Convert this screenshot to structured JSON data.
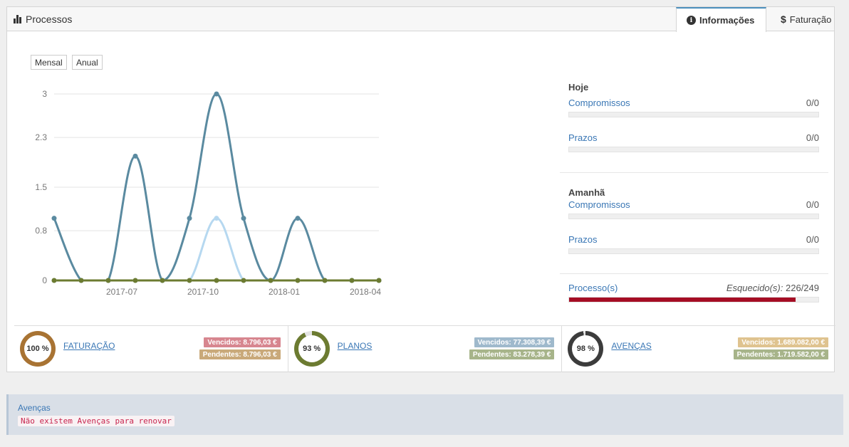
{
  "header": {
    "title": "Processos",
    "tabs": [
      {
        "label": "Informações",
        "icon": "info-circle-icon",
        "active": true
      },
      {
        "label": "Faturação",
        "icon": "dollar-icon",
        "active": false
      }
    ]
  },
  "chart_controls": {
    "monthly": "Mensal",
    "yearly": "Anual"
  },
  "chart_data": {
    "type": "line",
    "y_ticks": [
      "3",
      "2.3",
      "1.5",
      "0.8",
      "0"
    ],
    "x_ticks": [
      "2017-07",
      "2017-10",
      "2018-01",
      "2018-04"
    ],
    "ylim": [
      0,
      3
    ],
    "grid": true,
    "series": [
      {
        "color": "#5a8aa0",
        "values": [
          1,
          0,
          0,
          2,
          0,
          1,
          3,
          1,
          0,
          1,
          0,
          0,
          0
        ]
      },
      {
        "color": "#b6d8f0",
        "values": [
          0,
          0,
          0,
          0,
          0,
          0,
          1,
          0,
          0,
          0,
          0,
          0,
          0
        ]
      },
      {
        "color": "#6c7b31",
        "values": [
          0,
          0,
          0,
          0,
          0,
          0,
          0,
          0,
          0,
          0,
          0,
          0,
          0
        ]
      }
    ]
  },
  "side": {
    "today": {
      "heading": "Hoje",
      "items": [
        {
          "label": "Compromissos",
          "value": "0/0",
          "fraction": 0
        },
        {
          "label": "Prazos",
          "value": "0/0",
          "fraction": 0
        }
      ]
    },
    "tomorrow": {
      "heading": "Amanhã",
      "items": [
        {
          "label": "Compromissos",
          "value": "0/0",
          "fraction": 0
        },
        {
          "label": "Prazos",
          "value": "0/0",
          "fraction": 0
        }
      ]
    },
    "processes": {
      "label": "Processo(s)",
      "forgotten_label": "Esquecido(s):",
      "forgotten_value": "226/249",
      "fraction": 0.9076
    }
  },
  "stats": [
    {
      "pct": "100 %",
      "fraction": 1.0,
      "color": "#a87333",
      "label": "FATURAÇÃO",
      "due": "Vencidos: 8.796,03 €",
      "due_color": "#d7868f",
      "pending": "Pendentes: 8.796,03 €",
      "pending_color": "#c9a97a"
    },
    {
      "pct": "93 %",
      "fraction": 0.93,
      "color": "#6c7b31",
      "label": "PLANOS",
      "due": "Vencidos: 77.308,39 €",
      "due_color": "#9fb9cc",
      "pending": "Pendentes: 83.278,39 €",
      "pending_color": "#a7b48a"
    },
    {
      "pct": "98 %",
      "fraction": 0.98,
      "color": "#3c3c3c",
      "label": "AVENÇAS",
      "due": "Vencidos: 1.689.082,00 €",
      "due_color": "#dfc38f",
      "pending": "Pendentes: 1.719.582,00 €",
      "pending_color": "#a7b48a"
    }
  ],
  "alert": {
    "title": "Avenças",
    "message": "Não existem Avenças para renovar"
  }
}
